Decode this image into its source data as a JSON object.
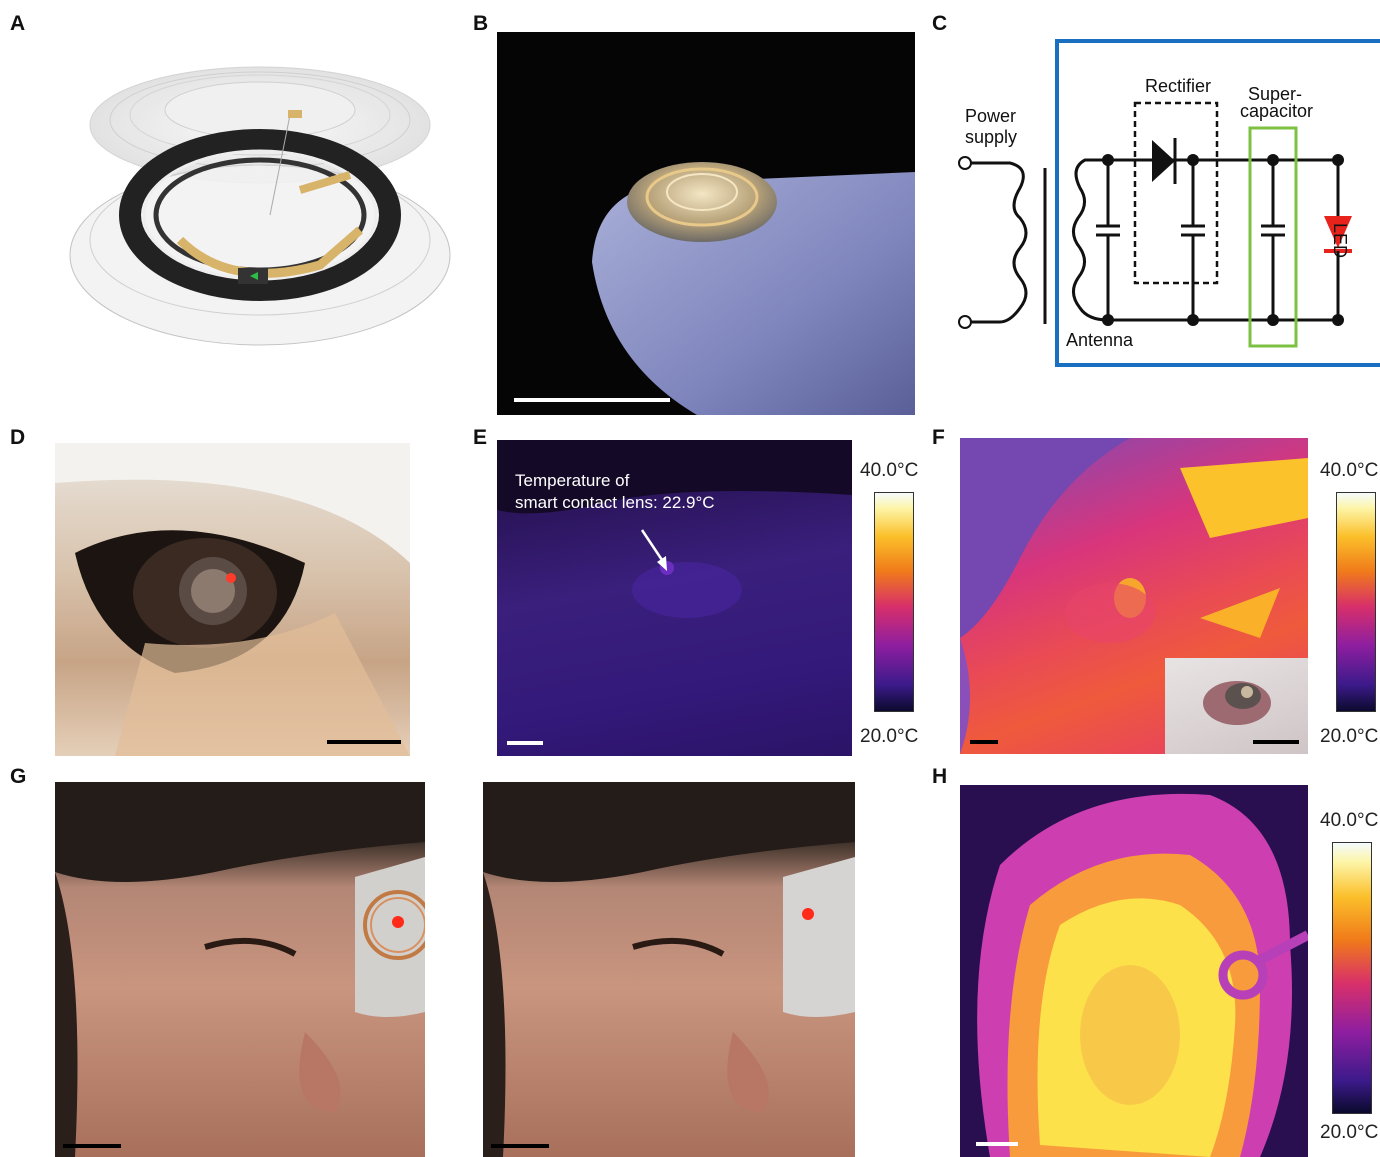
{
  "panels": {
    "A": "A",
    "B": "B",
    "C": "C",
    "D": "D",
    "E": "E",
    "F": "F",
    "G": "G",
    "H": "H"
  },
  "circuit": {
    "power_supply_line1": "Power",
    "power_supply_line2": "supply",
    "rectifier": "Rectifier",
    "supercap_line1": "Super-",
    "supercap_line2": "capacitor",
    "led": "LED",
    "antenna": "Antenna"
  },
  "thermal": {
    "e_annotation_line1": "Temperature of",
    "e_annotation_line2": "smart contact lens: 22.9°C",
    "e_max": "40.0°C",
    "e_min": "20.0°C",
    "f_max": "40.0°C",
    "f_min": "20.0°C",
    "h_max": "40.0°C",
    "h_min": "20.0°C"
  },
  "colors": {
    "frame_blue": "#1a6fc0",
    "supercap_green": "#7dc142",
    "led_red": "#e8231b"
  }
}
